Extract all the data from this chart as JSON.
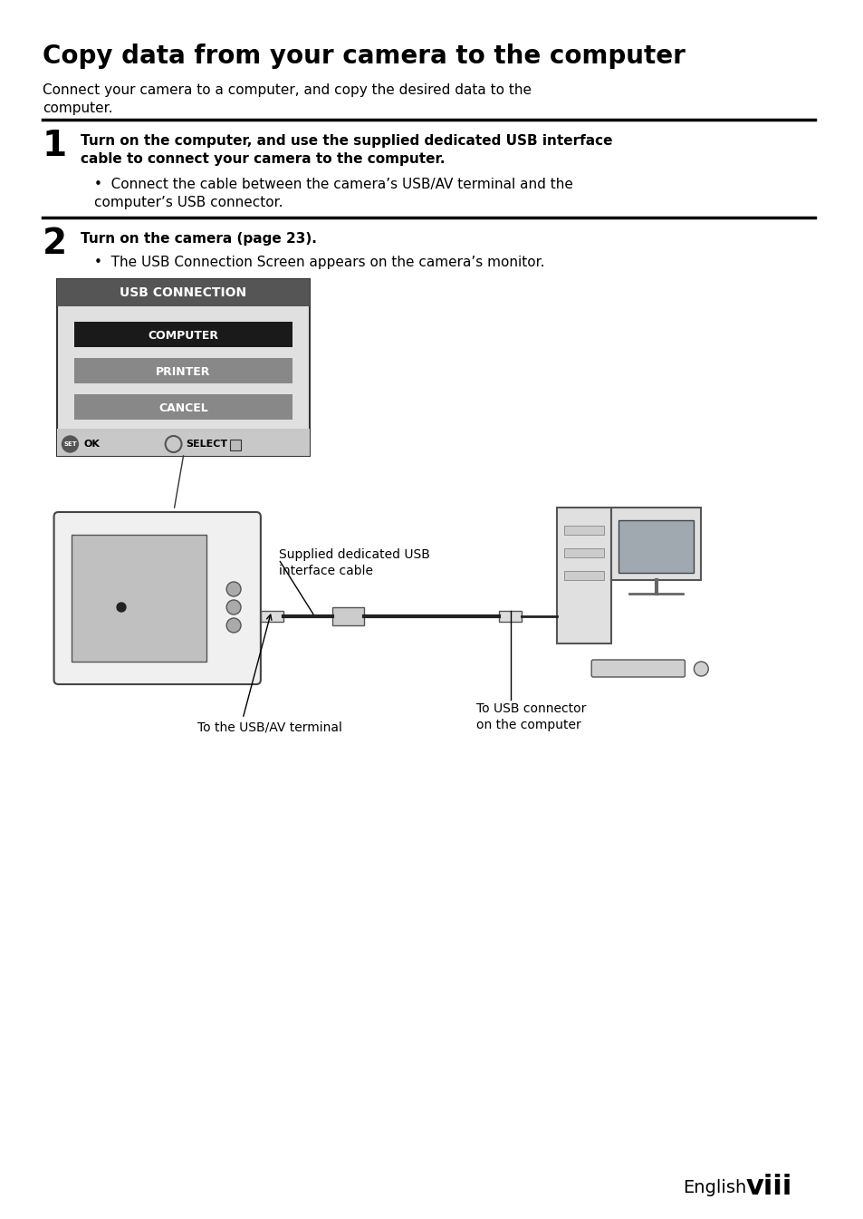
{
  "bg_color": "#ffffff",
  "title": "Copy data from your camera to the computer",
  "subtitle": "Connect your camera to a computer, and copy the desired data to the\ncomputer.",
  "step1_num": "1",
  "step1_bold": "Turn on the computer, and use the supplied dedicated USB interface\ncable to connect your camera to the computer.",
  "step1_bullet": "Connect the cable between the camera’s USB/AV terminal and the\ncomputer’s USB connector.",
  "step2_num": "2",
  "step2_bold": "Turn on the camera (page 23).",
  "step2_bullet": "The USB Connection Screen appears on the camera’s monitor.",
  "usb_title": "USB CONNECTION",
  "menu_item1": "COMPUTER",
  "menu_item2": "PRINTER",
  "menu_item3": "CANCEL",
  "label_cable": "Supplied dedicated USB\ninterface cable",
  "label_usb_terminal": "To the USB/AV terminal",
  "label_computer_usb": "To USB connector\non the computer",
  "footer_light": "English",
  "footer_bold": "viii",
  "title_fontsize": 20,
  "subtitle_fontsize": 11,
  "step_num_fontsize": 28,
  "step_bold_fontsize": 11,
  "step_bullet_fontsize": 11,
  "usb_title_fontsize": 10,
  "menu_fontsize": 9,
  "label_fontsize": 10,
  "footer_fontsize": 14,
  "footer_bold_fontsize": 22
}
